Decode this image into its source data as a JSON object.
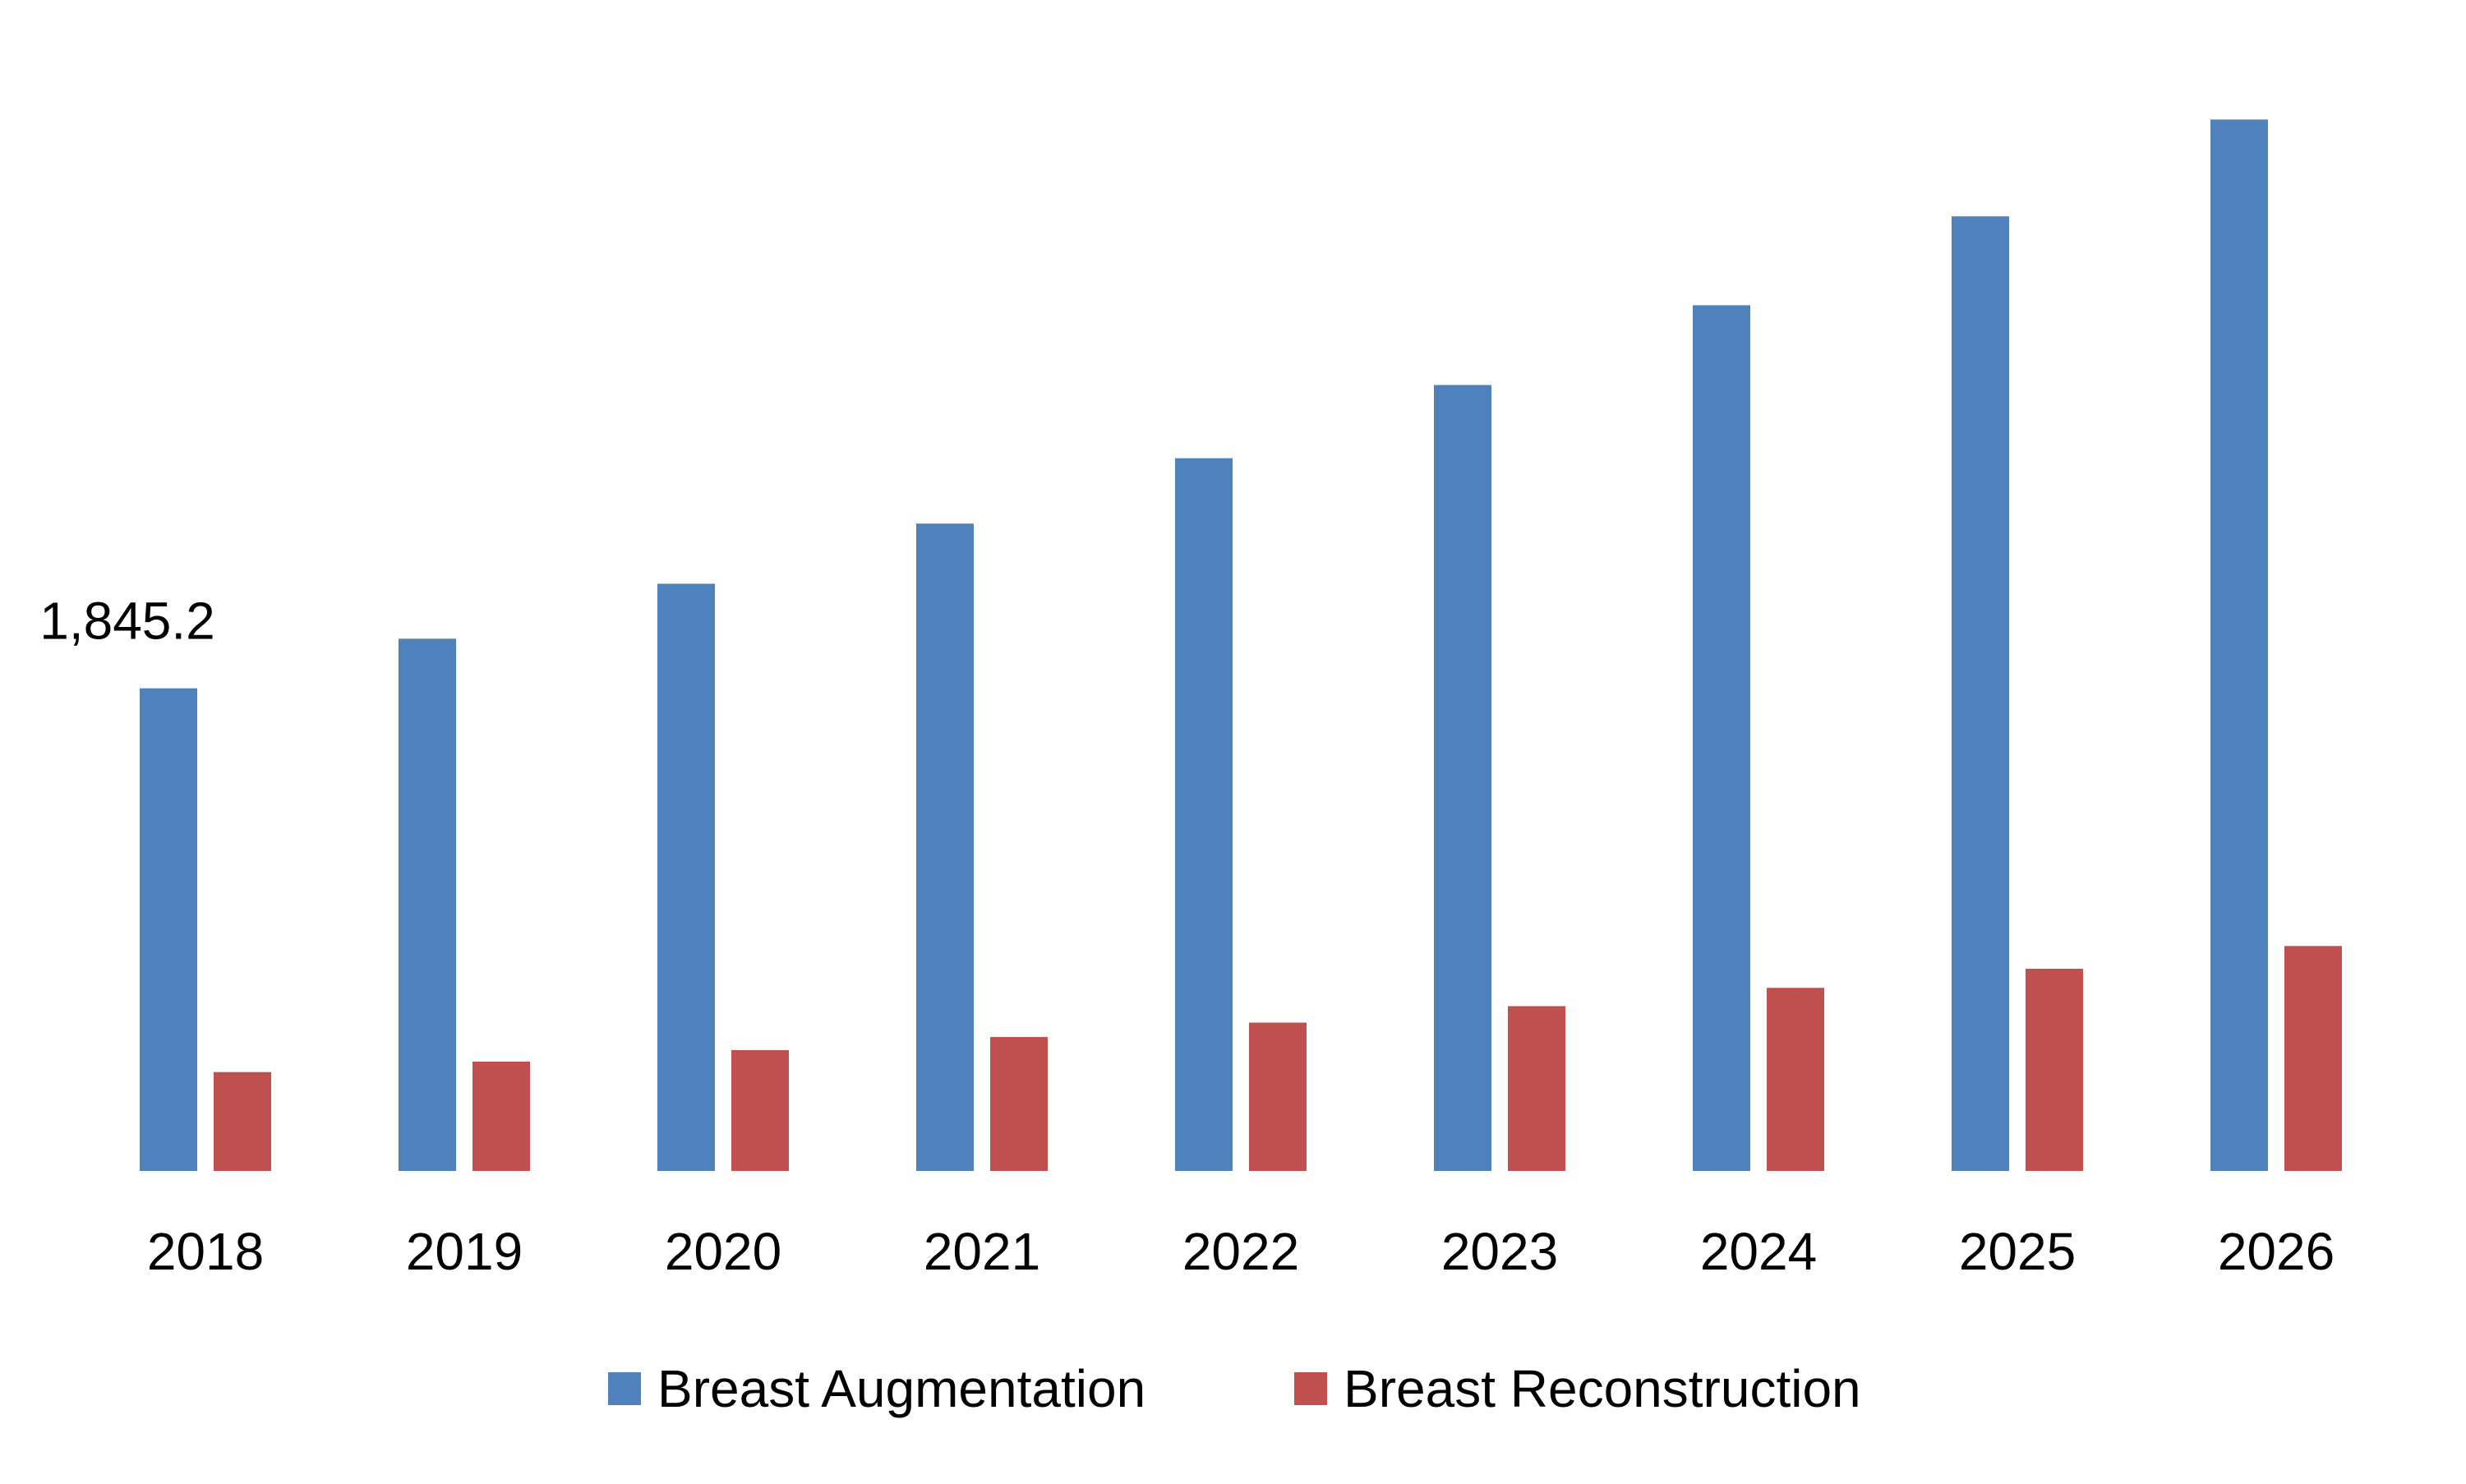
{
  "chart_data": {
    "type": "bar",
    "categories": [
      "2018",
      "2019",
      "2020",
      "2021",
      "2022",
      "2023",
      "2024",
      "2025",
      "2026"
    ],
    "series": [
      {
        "name": "Breast Augmentation",
        "color": "#4F81BD",
        "values": [
          1845.2,
          2035,
          2245,
          2475,
          2725,
          3005,
          3310,
          3650,
          4020
        ]
      },
      {
        "name": "Breast Reconstruction",
        "color": "#C0504D",
        "values": [
          378,
          418,
          462,
          512,
          567,
          630,
          700,
          773,
          860
        ]
      }
    ],
    "data_labels": [
      {
        "series": 0,
        "index": 0,
        "text": "1,845.2"
      }
    ],
    "ylim": [
      0,
      4100
    ],
    "grid": false,
    "legend_position": "bottom",
    "title": "",
    "xlabel": "",
    "ylabel": ""
  }
}
